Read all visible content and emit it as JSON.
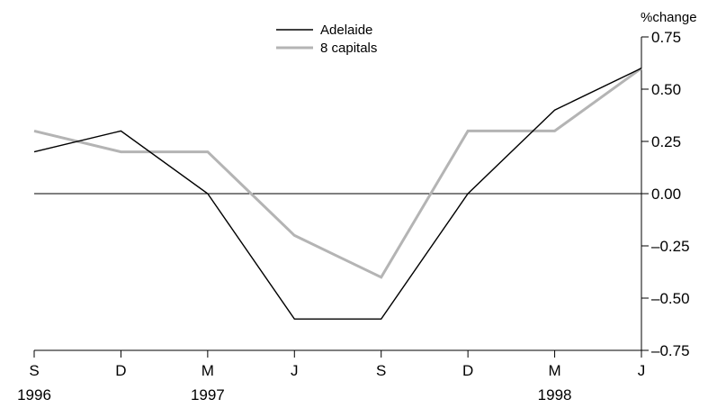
{
  "chart_data": {
    "type": "line",
    "title": "",
    "xlabel": "",
    "ylabel": "%change",
    "categories": [
      "S",
      "D",
      "M",
      "J",
      "S",
      "D",
      "M",
      "J"
    ],
    "year_labels": [
      {
        "index": 0,
        "label": "1996"
      },
      {
        "index": 2,
        "label": "1997"
      },
      {
        "index": 6,
        "label": "1998"
      }
    ],
    "ylim": [
      -0.75,
      0.75
    ],
    "yticks": [
      0.75,
      0.5,
      0.25,
      0.0,
      -0.25,
      -0.5,
      -0.75
    ],
    "ytick_labels": [
      "0.75",
      "0.50",
      "0.25",
      "0.00",
      "–0.25",
      "–0.50",
      "–0.75"
    ],
    "grid": false,
    "zero_line": true,
    "legend_position": "top-center",
    "series": [
      {
        "name": "Adelaide",
        "color": "#000000",
        "values": [
          0.2,
          0.3,
          0.0,
          -0.6,
          -0.6,
          0.0,
          0.4,
          0.6
        ]
      },
      {
        "name": "8 capitals",
        "color": "#b4b4b4",
        "values": [
          0.3,
          0.2,
          0.2,
          -0.2,
          -0.4,
          0.3,
          0.3,
          0.6
        ]
      }
    ]
  }
}
